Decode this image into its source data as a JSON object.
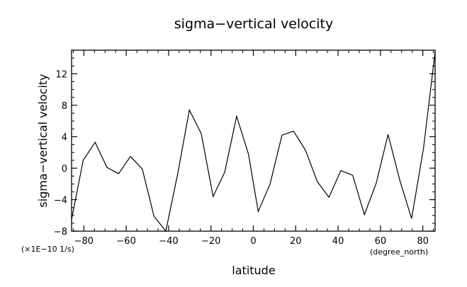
{
  "chart_data": {
    "type": "line",
    "title": "sigma−vertical velocity",
    "xlabel": "latitude",
    "ylabel": "sigma−vertical velocity",
    "x_units": "(degree_north)",
    "y_units": "(×1E−10 1/s)",
    "xlim": [
      -85.8,
      85.8
    ],
    "ylim": [
      -8,
      15
    ],
    "x_ticks": [
      -80,
      -60,
      -40,
      -20,
      0,
      20,
      40,
      60,
      80
    ],
    "x_tick_labels": [
      "−80",
      "−60",
      "−40",
      "−20",
      "0",
      "20",
      "40",
      "60",
      "80"
    ],
    "y_ticks": [
      -8,
      -4,
      0,
      4,
      8,
      12
    ],
    "y_tick_labels": [
      "−8",
      "−4",
      "0",
      "4",
      "8",
      "12"
    ],
    "grid": false,
    "series": [
      {
        "x": [
          -85.8,
          -80.3,
          -74.7,
          -69.1,
          -63.6,
          -58.0,
          -52.4,
          -46.9,
          -41.3,
          -35.7,
          -30.2,
          -24.6,
          -19.0,
          -13.5,
          -7.9,
          -2.3,
          2.3,
          7.9,
          13.5,
          19.0,
          24.6,
          30.2,
          35.7,
          41.3,
          46.9,
          52.4,
          58.0,
          63.6,
          69.1,
          74.7,
          80.3,
          85.8
        ],
        "y": [
          -6.5,
          1.0,
          3.3,
          0.1,
          -0.7,
          1.5,
          -0.1,
          -6.1,
          -8.0,
          -0.7,
          7.4,
          4.4,
          -3.6,
          -0.5,
          6.6,
          1.8,
          -5.5,
          -2.0,
          4.2,
          4.7,
          2.3,
          -1.7,
          -3.7,
          -0.3,
          -0.9,
          -5.9,
          -1.9,
          4.3,
          -1.5,
          -6.4,
          2.5,
          14.8
        ]
      }
    ]
  }
}
